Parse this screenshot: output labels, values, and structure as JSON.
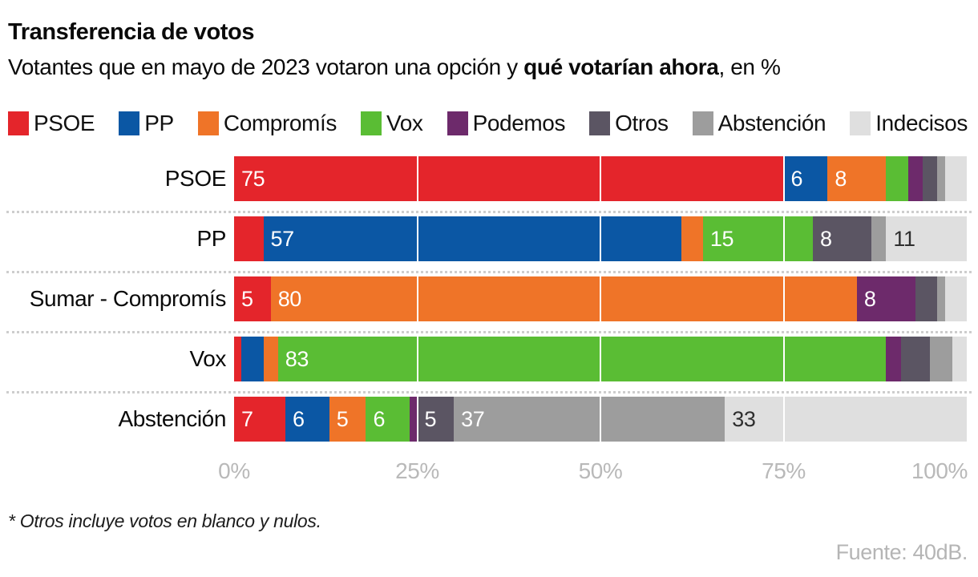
{
  "header": {
    "title": "Transferencia de votos",
    "subtitle_prefix": "Votantes que en mayo de 2023 votaron una opción y ",
    "subtitle_bold": "qué votarían ahora",
    "subtitle_suffix": ", en %"
  },
  "chart_data": {
    "type": "bar",
    "orientation": "horizontal",
    "stacked": true,
    "unit": "%",
    "xlim": [
      0,
      100
    ],
    "categories": [
      "PSOE",
      "PP",
      "Sumar - Compromís",
      "Vox",
      "Abstención"
    ],
    "series": [
      {
        "name": "PSOE",
        "color": "#e4252b",
        "value_label_color": "#ffffff",
        "values": [
          75,
          4,
          5,
          1,
          7
        ]
      },
      {
        "name": "PP",
        "color": "#0b57a4",
        "value_label_color": "#ffffff",
        "values": [
          6,
          57,
          0,
          3,
          6
        ]
      },
      {
        "name": "Compromís",
        "color": "#ef7428",
        "value_label_color": "#ffffff",
        "values": [
          8,
          3,
          80,
          2,
          5
        ]
      },
      {
        "name": "Vox",
        "color": "#5abd34",
        "value_label_color": "#ffffff",
        "values": [
          3,
          15,
          0,
          83,
          6
        ]
      },
      {
        "name": "Podemos",
        "color": "#6d2a6b",
        "value_label_color": "#ffffff",
        "values": [
          2,
          0,
          8,
          2,
          1
        ]
      },
      {
        "name": "Otros",
        "color": "#5b5563",
        "value_label_color": "#ffffff",
        "values": [
          2,
          8,
          3,
          4,
          5
        ]
      },
      {
        "name": "Abstención",
        "color": "#9d9d9d",
        "value_label_color": "#ffffff",
        "values": [
          1,
          2,
          1,
          3,
          37
        ]
      },
      {
        "name": "Indecisos",
        "color": "#dfdfdf",
        "value_label_color": "#2e2e2e",
        "values": [
          3,
          11,
          3,
          2,
          33
        ]
      }
    ],
    "label_threshold": 5,
    "gridlines_pct": [
      25,
      50,
      75
    ],
    "x_ticks": [
      {
        "label": "0%",
        "pct": 0
      },
      {
        "label": "25%",
        "pct": 25
      },
      {
        "label": "50%",
        "pct": 50
      },
      {
        "label": "75%",
        "pct": 75
      },
      {
        "label": "100%",
        "pct": 100
      }
    ],
    "legend_position": "top",
    "grid": true
  },
  "footnote": "* Otros incluye votos en blanco y nulos.",
  "source": "Fuente: 40dB."
}
